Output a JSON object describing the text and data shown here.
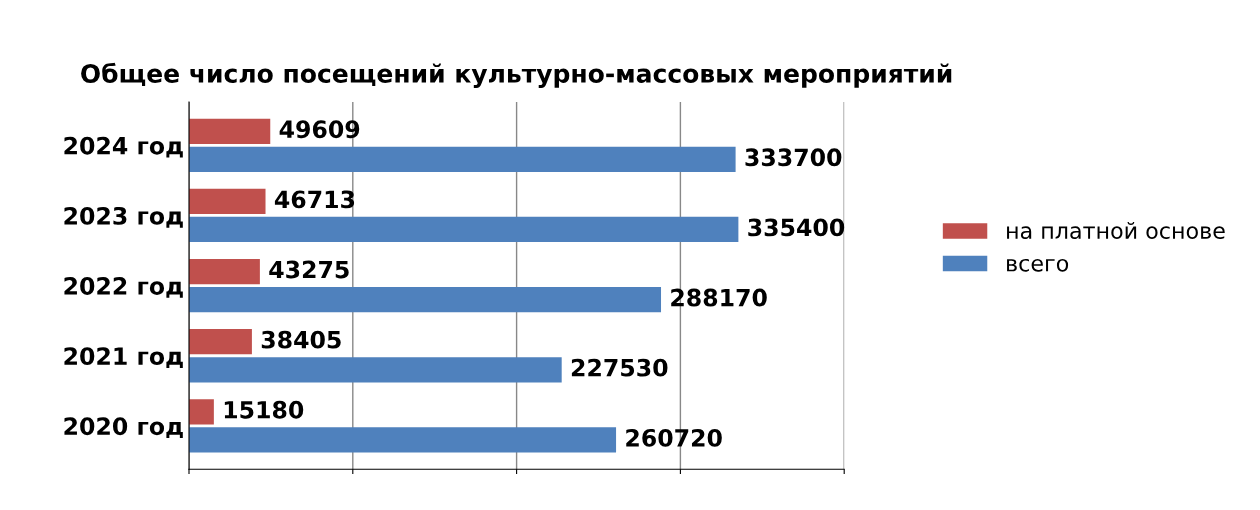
{
  "chart_data": {
    "type": "bar",
    "orientation": "horizontal",
    "title": "Общее число посещений культурно-массовых мероприятий",
    "categories": [
      "2024 год",
      "2023 год",
      "2022 год",
      "2021 год",
      "2020 год"
    ],
    "series": [
      {
        "name": "на платной основе",
        "color": "#c0504d",
        "values": [
          49609,
          46713,
          43275,
          38405,
          15180
        ]
      },
      {
        "name": "всего",
        "color": "#4f81bd",
        "values": [
          333700,
          335400,
          288170,
          227530,
          260720
        ]
      }
    ],
    "xlim": [
      0,
      400000
    ],
    "xticks": [
      {
        "value": 0,
        "label": null
      },
      {
        "value": 100000,
        "label": null
      },
      {
        "value": 200000,
        "label": null
      },
      {
        "value": 300000,
        "label": null
      },
      {
        "value": 400000,
        "label": null
      }
    ],
    "grid": "x",
    "legend": "right",
    "data_labels": true
  }
}
